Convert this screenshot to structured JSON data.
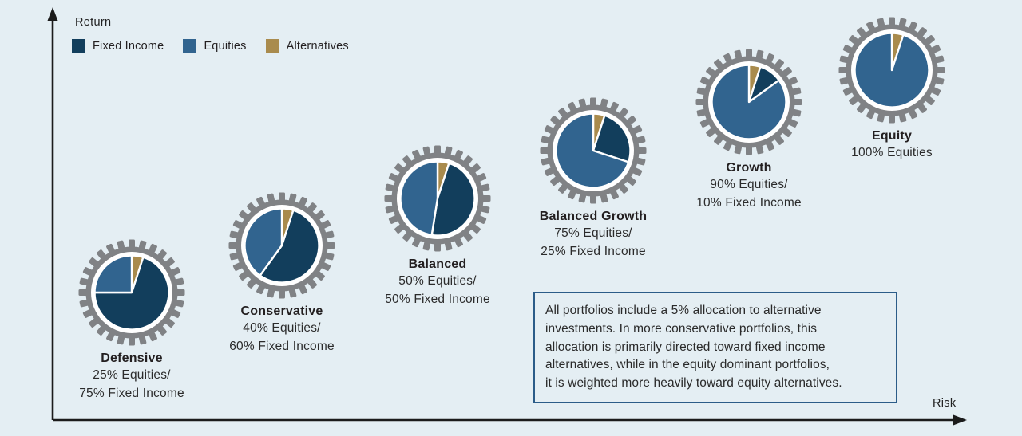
{
  "axes": {
    "y_label": "Return",
    "x_label": "Risk"
  },
  "legend": {
    "items": [
      {
        "label": "Fixed Income",
        "color": "#123e5c"
      },
      {
        "label": "Equities",
        "color": "#31648f"
      },
      {
        "label": "Alternatives",
        "color": "#a98b4d"
      }
    ]
  },
  "note": {
    "lines": [
      "All portfolios include a 5% allocation to alternative",
      "investments. In more conservative portfolios, this",
      "allocation is primarily directed toward fixed income",
      "alternatives, while in the equity dominant portfolios,",
      "it is weighted more heavily toward equity alternatives."
    ],
    "border_color": "#2b5c88"
  },
  "chart_data": {
    "type": "pie",
    "title": "Portfolio risk/return spectrum with gear-shaped allocation pies",
    "xlabel": "Risk",
    "ylabel": "Return",
    "legend_position": "top-left",
    "grid": false,
    "colors": {
      "fixed_income": "#123e5c",
      "equities": "#31648f",
      "alternatives": "#a98b4d",
      "gear_gray": "#808285",
      "ring_white": "#ffffff",
      "background": "#e4eef3"
    },
    "segment_order": [
      "alternatives",
      "fixed_income",
      "equities"
    ],
    "portfolios": [
      {
        "name": "Defensive",
        "line1": "25% Equities/",
        "line2": "75% Fixed Income",
        "pie": {
          "alternatives": 5,
          "fixed_income": 70,
          "equities": 25
        }
      },
      {
        "name": "Conservative",
        "line1": "40% Equities/",
        "line2": "60% Fixed Income",
        "pie": {
          "alternatives": 5,
          "fixed_income": 55,
          "equities": 40
        }
      },
      {
        "name": "Balanced",
        "line1": "50% Equities/",
        "line2": "50% Fixed Income",
        "pie": {
          "alternatives": 5,
          "fixed_income": 47.5,
          "equities": 47.5
        }
      },
      {
        "name": "Balanced Growth",
        "line1": "75% Equities/",
        "line2": "25% Fixed Income",
        "pie": {
          "alternatives": 5,
          "fixed_income": 25,
          "equities": 70
        }
      },
      {
        "name": "Growth",
        "line1": "90% Equities/",
        "line2": "10% Fixed Income",
        "pie": {
          "alternatives": 5,
          "fixed_income": 10,
          "equities": 85
        }
      },
      {
        "name": "Equity",
        "line1": "100% Equities",
        "line2": "",
        "pie": {
          "alternatives": 5,
          "fixed_income": 0,
          "equities": 95
        }
      }
    ]
  }
}
